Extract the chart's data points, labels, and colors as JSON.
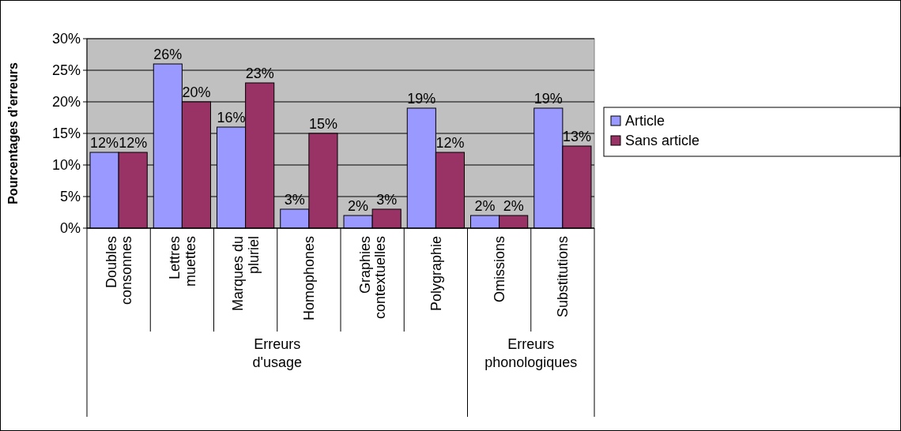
{
  "chart_data": {
    "type": "bar",
    "ylabel": "Pourcentages d’erreurs",
    "categories": [
      "Doubles consonnes",
      "Lettres muettes",
      "Marques du pluriel",
      "Homophones",
      "Graphies contextuelles",
      "Polygraphie",
      "Omissions",
      "Substitutions"
    ],
    "series": [
      {
        "name": "Article",
        "color": "#9999ff",
        "values": [
          12,
          26,
          16,
          3,
          2,
          19,
          2,
          19
        ]
      },
      {
        "name": "Sans article",
        "color": "#993366",
        "values": [
          12,
          20,
          23,
          15,
          3,
          12,
          2,
          13
        ]
      }
    ],
    "ylim": [
      0,
      30
    ],
    "yticks": [
      {
        "value": 0,
        "label": "0%"
      },
      {
        "value": 5,
        "label": "5%"
      },
      {
        "value": 10,
        "label": "10%"
      },
      {
        "value": 15,
        "label": "15%"
      },
      {
        "value": 20,
        "label": "20%"
      },
      {
        "value": 25,
        "label": "25%"
      },
      {
        "value": 30,
        "label": "30%"
      }
    ],
    "value_labels": [
      [
        "12%",
        "26%",
        "16%",
        "3%",
        "2%",
        "19%",
        "2%",
        "19%"
      ],
      [
        "12%",
        "20%",
        "23%",
        "15%",
        "3%",
        "12%",
        "2%",
        "13%"
      ]
    ],
    "annotations": [
      "Erreurs d'usage",
      "Erreurs phonologiques"
    ],
    "grid": "y",
    "legend": "right"
  }
}
